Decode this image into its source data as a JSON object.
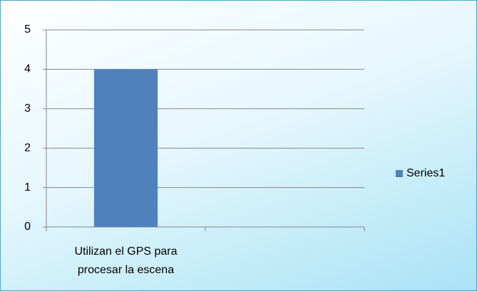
{
  "chart_data": {
    "type": "bar",
    "categories": [
      "Utilizan el GPS para procesar la escena",
      null
    ],
    "series": [
      {
        "name": "Series1",
        "color": "#4f81bd",
        "values": [
          4,
          null
        ]
      }
    ],
    "ylim": [
      0,
      5
    ],
    "yticks": [
      0,
      1,
      2,
      3,
      4,
      5
    ],
    "grid": true,
    "legend": "right"
  }
}
